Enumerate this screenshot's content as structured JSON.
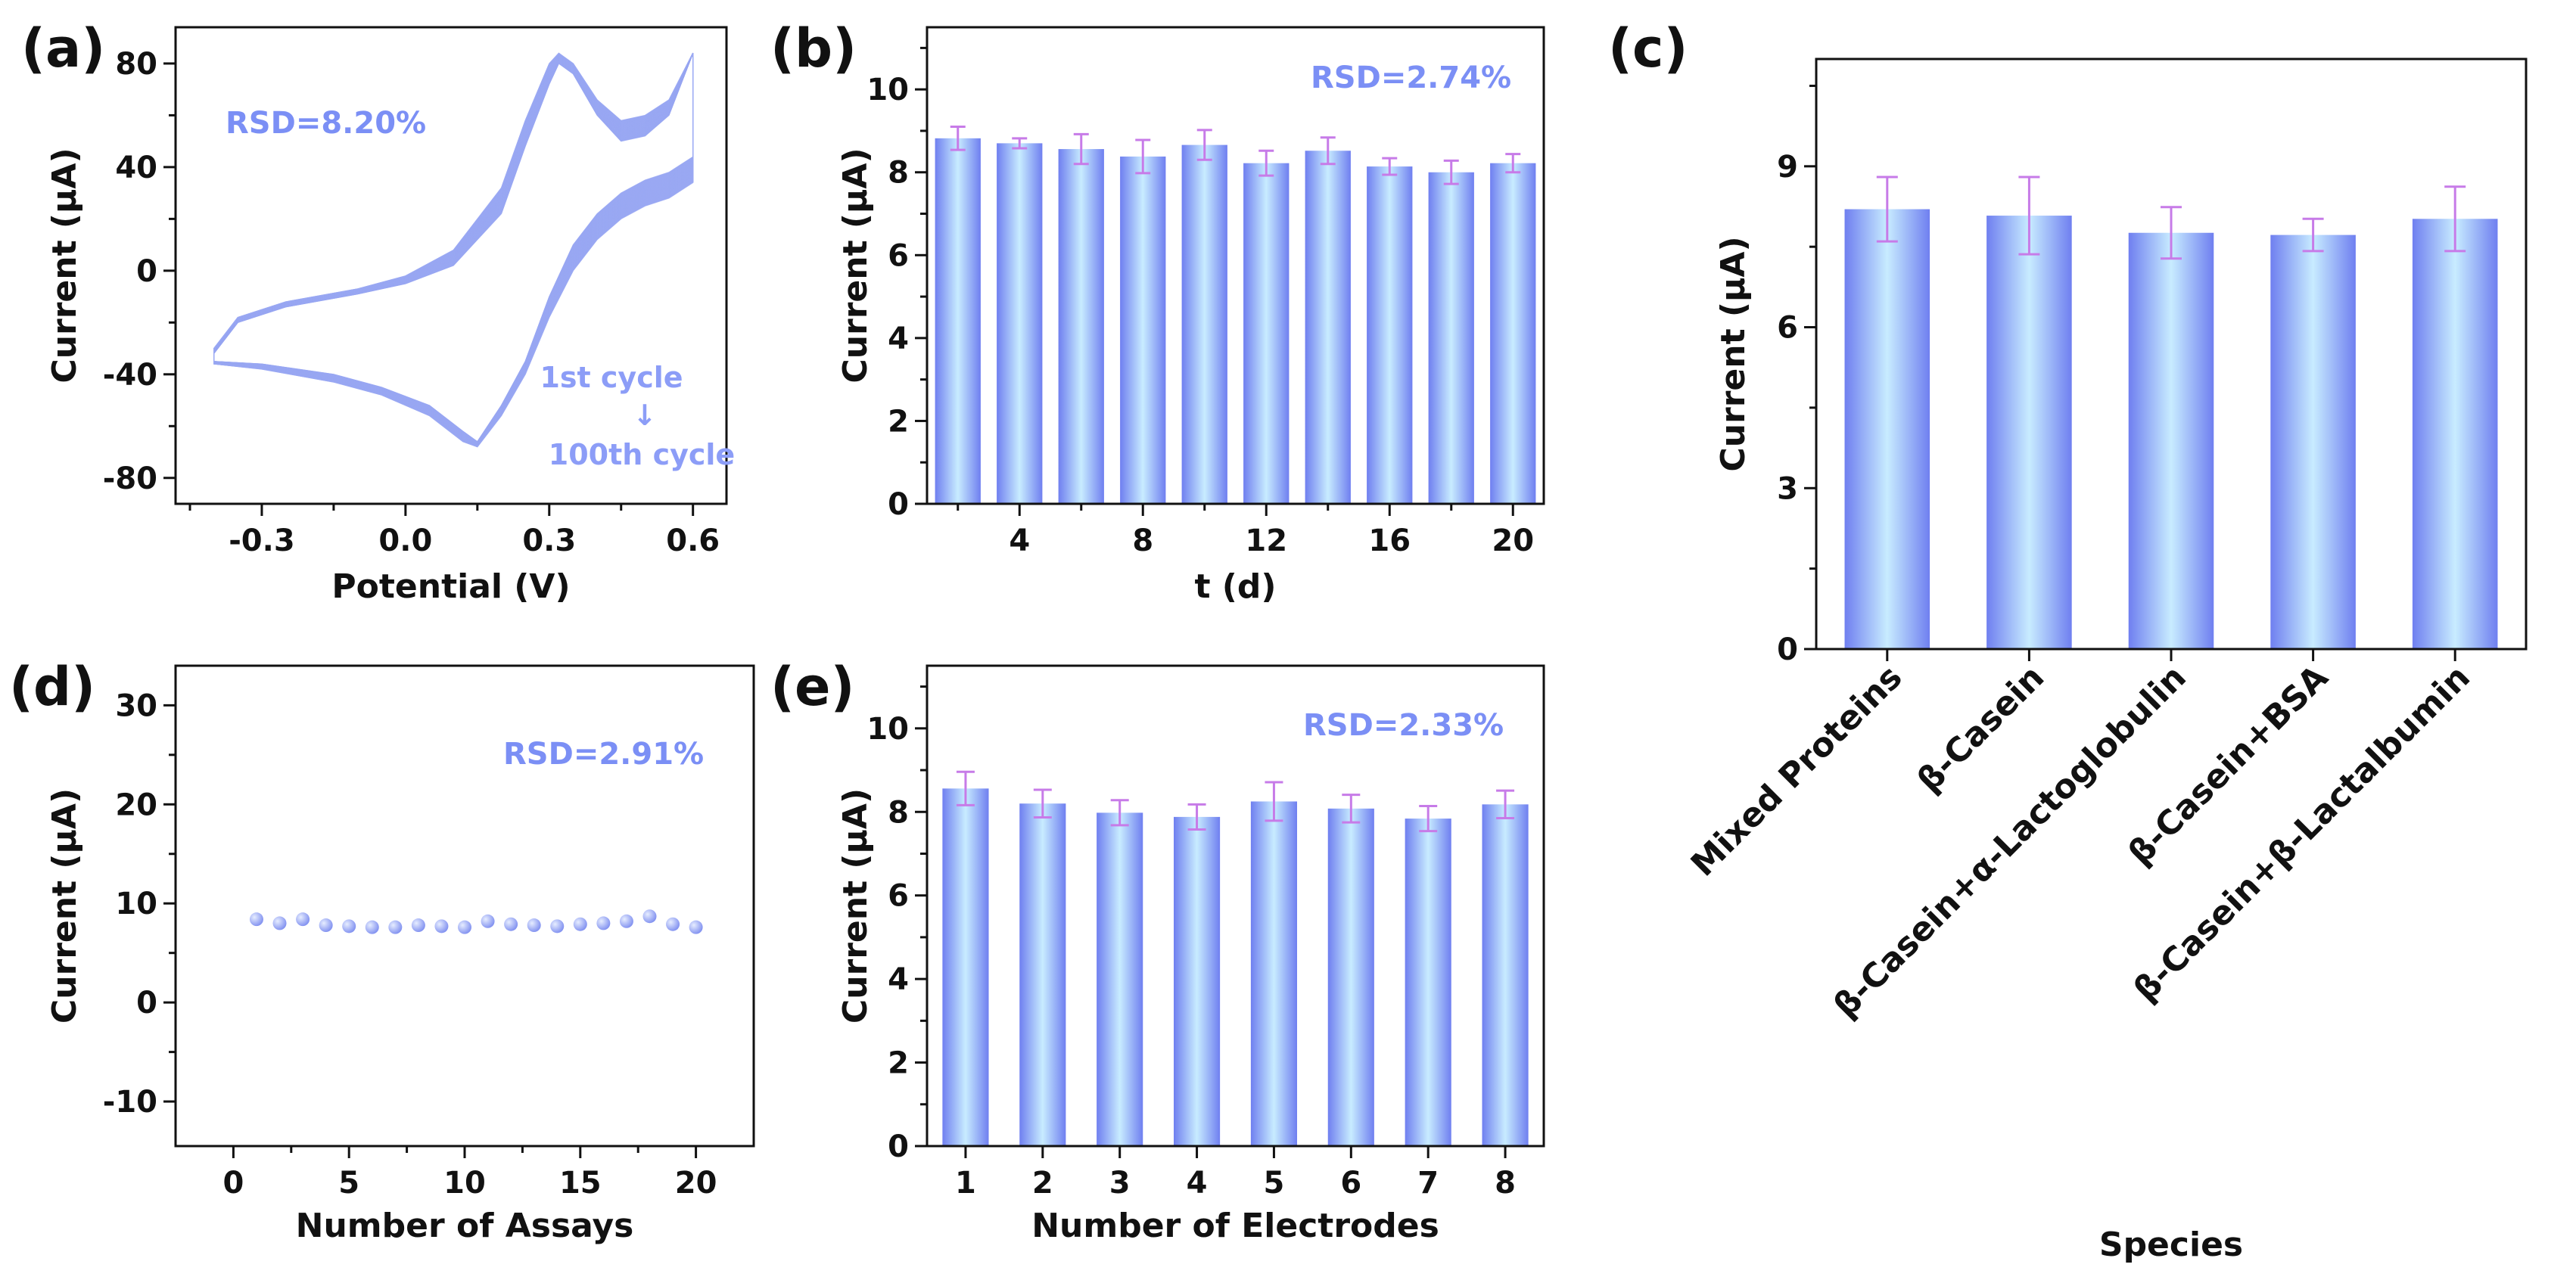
{
  "colors": {
    "bar_dark": "#6f7ff0",
    "bar_light": "#c8ecff",
    "error_bar": "#c77be8",
    "rsd_text": "#7b8ff5",
    "cv_curve": "#9aa8f3",
    "scatter": "#8d9cf2"
  },
  "chart_data": [
    {
      "id": "a",
      "type": "line",
      "panel_label": "(a)",
      "xlabel": "Potential (V)",
      "ylabel": "Current (μA)",
      "xlim": [
        -0.48,
        0.67
      ],
      "ylim": [
        -90,
        94
      ],
      "xticks": [
        -0.3,
        0.0,
        0.3,
        0.6
      ],
      "xtick_labels": [
        "-0.3",
        "0.0",
        "0.3",
        "0.6"
      ],
      "yticks": [
        -80,
        -40,
        0,
        40,
        80
      ],
      "ytick_labels": [
        "-80",
        "-40",
        "0",
        "40",
        "80"
      ],
      "rsd": "RSD=8.20%",
      "annotation": {
        "start": "1st cycle",
        "arrow": "↓",
        "end": "100th cycle"
      },
      "cycles": 100,
      "series": [
        {
          "name": "1st cycle",
          "upper": [
            [
              -0.4,
              -32
            ],
            [
              -0.35,
              -20
            ],
            [
              -0.25,
              -14
            ],
            [
              -0.1,
              -9
            ],
            [
              0.0,
              -5
            ],
            [
              0.1,
              2
            ],
            [
              0.2,
              22
            ],
            [
              0.25,
              48
            ],
            [
              0.3,
              72
            ],
            [
              0.32,
              80
            ],
            [
              0.35,
              76
            ],
            [
              0.4,
              60
            ],
            [
              0.45,
              50
            ],
            [
              0.5,
              52
            ],
            [
              0.55,
              60
            ],
            [
              0.6,
              84
            ]
          ],
          "lower": [
            [
              0.6,
              44
            ],
            [
              0.55,
              38
            ],
            [
              0.5,
              35
            ],
            [
              0.45,
              30
            ],
            [
              0.4,
              22
            ],
            [
              0.35,
              10
            ],
            [
              0.3,
              -10
            ],
            [
              0.25,
              -35
            ],
            [
              0.2,
              -52
            ],
            [
              0.15,
              -66
            ],
            [
              0.12,
              -62
            ],
            [
              0.05,
              -52
            ],
            [
              -0.05,
              -45
            ],
            [
              -0.15,
              -40
            ],
            [
              -0.3,
              -36
            ],
            [
              -0.4,
              -35
            ]
          ]
        },
        {
          "name": "100th cycle",
          "upper": [
            [
              -0.4,
              -30
            ],
            [
              -0.35,
              -18
            ],
            [
              -0.25,
              -12
            ],
            [
              -0.1,
              -7
            ],
            [
              0.0,
              -2
            ],
            [
              0.1,
              8
            ],
            [
              0.2,
              32
            ],
            [
              0.25,
              58
            ],
            [
              0.3,
              80
            ],
            [
              0.32,
              84
            ],
            [
              0.35,
              80
            ],
            [
              0.4,
              66
            ],
            [
              0.45,
              58
            ],
            [
              0.5,
              60
            ],
            [
              0.55,
              66
            ],
            [
              0.6,
              84
            ]
          ],
          "lower": [
            [
              0.6,
              34
            ],
            [
              0.55,
              28
            ],
            [
              0.5,
              25
            ],
            [
              0.45,
              20
            ],
            [
              0.4,
              12
            ],
            [
              0.35,
              0
            ],
            [
              0.3,
              -18
            ],
            [
              0.25,
              -40
            ],
            [
              0.2,
              -56
            ],
            [
              0.15,
              -68
            ],
            [
              0.12,
              -66
            ],
            [
              0.05,
              -56
            ],
            [
              -0.05,
              -48
            ],
            [
              -0.15,
              -43
            ],
            [
              -0.3,
              -38
            ],
            [
              -0.4,
              -36
            ]
          ]
        }
      ]
    },
    {
      "id": "b",
      "type": "bar",
      "panel_label": "(b)",
      "xlabel": "t (d)",
      "ylabel": "Current (μA)",
      "ylim": [
        0,
        11.5
      ],
      "x": [
        2,
        4,
        6,
        8,
        10,
        12,
        14,
        16,
        18,
        20
      ],
      "values": [
        8.82,
        8.7,
        8.56,
        8.38,
        8.66,
        8.22,
        8.52,
        8.14,
        8.0,
        8.22
      ],
      "errors": [
        0.28,
        0.12,
        0.36,
        0.4,
        0.36,
        0.3,
        0.32,
        0.2,
        0.28,
        0.22
      ],
      "xticks": [
        4,
        8,
        12,
        16,
        20
      ],
      "xtick_labels": [
        "4",
        "8",
        "12",
        "16",
        "20"
      ],
      "yticks": [
        0,
        2,
        4,
        6,
        8,
        10
      ],
      "ytick_labels": [
        "0",
        "2",
        "4",
        "6",
        "8",
        "10"
      ],
      "rsd": "RSD=2.74%"
    },
    {
      "id": "c",
      "type": "bar",
      "panel_label": "(c)",
      "xlabel": "Species",
      "ylabel": "Current (μA)",
      "ylim": [
        0,
        11
      ],
      "categories": [
        "Mixed Proteins",
        "β-Casein",
        "β-Casein+α-Lactoglobulin",
        "β-Casein+BSA",
        "β-Casein+β-Lactalbumin"
      ],
      "values": [
        8.2,
        8.08,
        7.76,
        7.72,
        8.02
      ],
      "errors": [
        0.6,
        0.72,
        0.48,
        0.3,
        0.6
      ],
      "yticks": [
        0,
        3,
        6,
        9
      ],
      "ytick_labels": [
        "0",
        "3",
        "6",
        "9"
      ]
    },
    {
      "id": "d",
      "type": "scatter",
      "panel_label": "(d)",
      "xlabel": "Number of Assays",
      "ylabel": "Current (μA)",
      "xlim": [
        -2.5,
        22.5
      ],
      "ylim": [
        -14.5,
        34
      ],
      "x": [
        1,
        2,
        3,
        4,
        5,
        6,
        7,
        8,
        9,
        10,
        11,
        12,
        13,
        14,
        15,
        16,
        17,
        18,
        19,
        20
      ],
      "y": [
        8.4,
        8.0,
        8.4,
        7.8,
        7.7,
        7.6,
        7.6,
        7.8,
        7.7,
        7.6,
        8.2,
        7.9,
        7.8,
        7.7,
        7.9,
        8.0,
        8.2,
        8.7,
        7.9,
        7.6
      ],
      "xticks": [
        0,
        5,
        10,
        15,
        20
      ],
      "xtick_labels": [
        "0",
        "5",
        "10",
        "15",
        "20"
      ],
      "yticks": [
        -10,
        0,
        10,
        20,
        30
      ],
      "ytick_labels": [
        "-10",
        "0",
        "10",
        "20",
        "30"
      ],
      "rsd": "RSD=2.91%"
    },
    {
      "id": "e",
      "type": "bar",
      "panel_label": "(e)",
      "xlabel": "Number of Electrodes",
      "ylabel": "Current (μA)",
      "ylim": [
        0,
        11.5
      ],
      "x": [
        1,
        2,
        3,
        4,
        5,
        6,
        7,
        8
      ],
      "values": [
        8.56,
        8.2,
        7.98,
        7.88,
        8.25,
        8.08,
        7.84,
        8.18
      ],
      "errors": [
        0.4,
        0.33,
        0.3,
        0.3,
        0.46,
        0.33,
        0.3,
        0.33
      ],
      "xticks": [
        1,
        2,
        3,
        4,
        5,
        6,
        7,
        8
      ],
      "xtick_labels": [
        "1",
        "2",
        "3",
        "4",
        "5",
        "6",
        "7",
        "8"
      ],
      "yticks": [
        0,
        2,
        4,
        6,
        8,
        10
      ],
      "ytick_labels": [
        "0",
        "2",
        "4",
        "6",
        "8",
        "10"
      ],
      "rsd": "RSD=2.33%"
    }
  ]
}
